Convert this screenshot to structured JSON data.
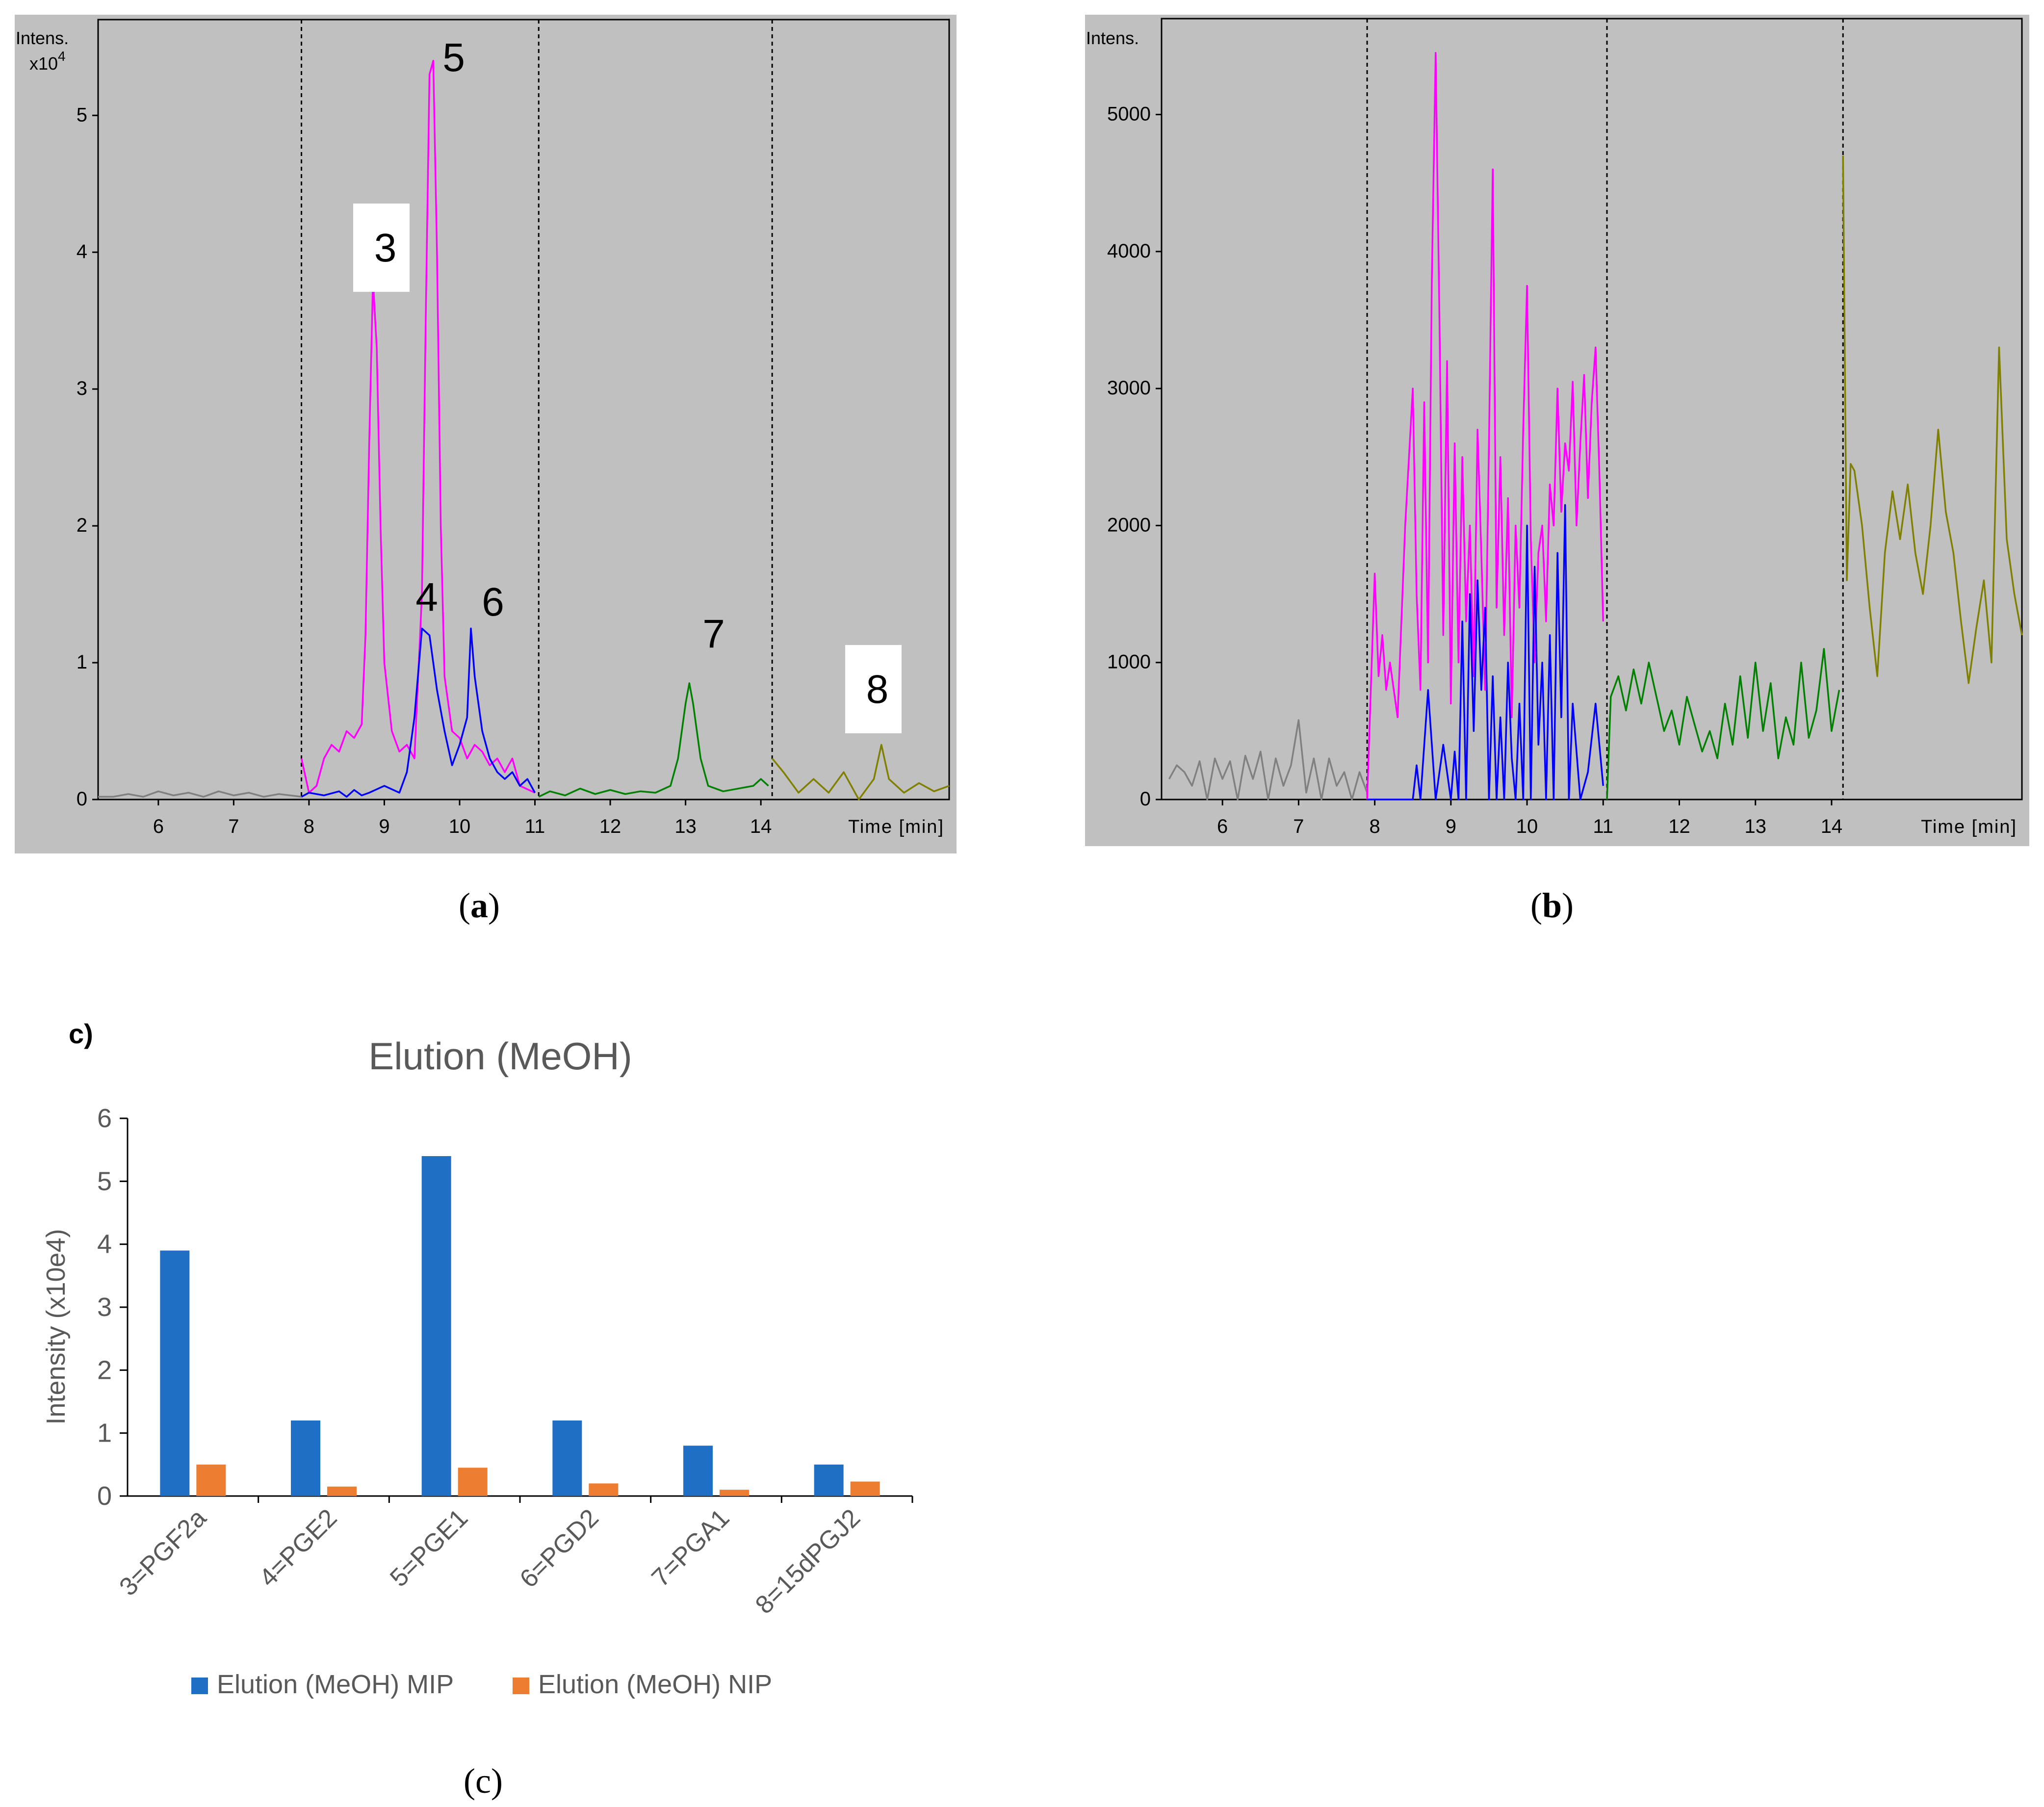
{
  "chart_data": [
    {
      "panel": "a",
      "type": "line",
      "title": "",
      "ylabel": "Intens.",
      "yunit": "x10",
      "yexp": "4",
      "xlabel": "Time [min]",
      "xlim": [
        5.2,
        16.5
      ],
      "ylim": [
        0,
        5.7
      ],
      "xticks": [
        6,
        7,
        8,
        9,
        10,
        11,
        12,
        13,
        14
      ],
      "yticks": [
        0,
        1,
        2,
        3,
        4,
        5
      ],
      "segment_boundaries": [
        7.9,
        11.05,
        14.15
      ],
      "series": [
        {
          "name": "grey",
          "color": "#808080",
          "x": [
            5.2,
            5.4,
            5.6,
            5.8,
            6.0,
            6.2,
            6.4,
            6.6,
            6.8,
            7.0,
            7.2,
            7.4,
            7.6,
            7.9
          ],
          "y": [
            0.02,
            0.02,
            0.04,
            0.02,
            0.06,
            0.03,
            0.05,
            0.02,
            0.06,
            0.03,
            0.05,
            0.02,
            0.04,
            0.02
          ]
        },
        {
          "name": "magenta",
          "color": "#ff00ff",
          "x": [
            7.9,
            8.0,
            8.1,
            8.2,
            8.3,
            8.4,
            8.5,
            8.6,
            8.7,
            8.75,
            8.8,
            8.85,
            8.9,
            8.95,
            9.0,
            9.1,
            9.2,
            9.3,
            9.4,
            9.5,
            9.55,
            9.6,
            9.65,
            9.7,
            9.75,
            9.8,
            9.9,
            10.0,
            10.1,
            10.2,
            10.3,
            10.4,
            10.5,
            10.6,
            10.7,
            10.8,
            11.0
          ],
          "y": [
            0.3,
            0.05,
            0.1,
            0.3,
            0.4,
            0.35,
            0.5,
            0.45,
            0.55,
            1.2,
            2.6,
            3.8,
            3.3,
            2.0,
            1.0,
            0.5,
            0.35,
            0.4,
            0.3,
            1.5,
            3.5,
            5.3,
            5.4,
            4.0,
            2.0,
            0.9,
            0.5,
            0.45,
            0.3,
            0.4,
            0.35,
            0.25,
            0.3,
            0.2,
            0.3,
            0.1,
            0.05
          ]
        },
        {
          "name": "blue",
          "color": "#0000ff",
          "x": [
            7.9,
            8.0,
            8.2,
            8.4,
            8.5,
            8.6,
            8.7,
            8.8,
            9.0,
            9.2,
            9.3,
            9.4,
            9.5,
            9.6,
            9.7,
            9.8,
            9.9,
            10.0,
            10.1,
            10.15,
            10.2,
            10.3,
            10.4,
            10.5,
            10.6,
            10.7,
            10.8,
            10.9,
            11.0
          ],
          "y": [
            0.02,
            0.05,
            0.03,
            0.06,
            0.02,
            0.07,
            0.03,
            0.05,
            0.1,
            0.05,
            0.2,
            0.6,
            1.25,
            1.2,
            0.8,
            0.5,
            0.25,
            0.4,
            0.6,
            1.25,
            0.9,
            0.5,
            0.3,
            0.2,
            0.15,
            0.2,
            0.1,
            0.15,
            0.05
          ]
        },
        {
          "name": "green",
          "color": "#008000",
          "x": [
            11.05,
            11.2,
            11.4,
            11.6,
            11.8,
            12.0,
            12.2,
            12.4,
            12.6,
            12.8,
            12.9,
            13.0,
            13.05,
            13.1,
            13.2,
            13.3,
            13.5,
            13.7,
            13.9,
            14.0,
            14.1
          ],
          "y": [
            0.02,
            0.06,
            0.03,
            0.08,
            0.04,
            0.07,
            0.04,
            0.06,
            0.05,
            0.1,
            0.3,
            0.7,
            0.85,
            0.7,
            0.3,
            0.1,
            0.06,
            0.08,
            0.1,
            0.15,
            0.1
          ]
        },
        {
          "name": "olive",
          "color": "#808000",
          "x": [
            14.15,
            14.3,
            14.5,
            14.7,
            14.9,
            15.1,
            15.3,
            15.5,
            15.6,
            15.7,
            15.9,
            16.1,
            16.3,
            16.5
          ],
          "y": [
            0.3,
            0.2,
            0.05,
            0.15,
            0.05,
            0.2,
            0.0,
            0.15,
            0.4,
            0.15,
            0.05,
            0.12,
            0.06,
            0.1
          ]
        }
      ],
      "peak_labels": [
        {
          "text": "3",
          "boxed": true
        },
        {
          "text": "5",
          "boxed": false
        },
        {
          "text": "4",
          "boxed": false
        },
        {
          "text": "6",
          "boxed": false
        },
        {
          "text": "7",
          "boxed": false
        },
        {
          "text": "8",
          "boxed": true
        }
      ]
    },
    {
      "panel": "b",
      "type": "line",
      "title": "",
      "ylabel": "Intens.",
      "xlabel": "Time [min]",
      "xlim": [
        5.2,
        16.5
      ],
      "ylim": [
        0,
        5700
      ],
      "xticks": [
        6,
        7,
        8,
        9,
        10,
        11,
        12,
        13,
        14
      ],
      "yticks": [
        0,
        1000,
        2000,
        3000,
        4000,
        5000
      ],
      "segment_boundaries": [
        7.9,
        11.05,
        14.15
      ],
      "series": [
        {
          "name": "grey",
          "color": "#808080",
          "x": [
            5.3,
            5.4,
            5.5,
            5.6,
            5.7,
            5.8,
            5.9,
            6.0,
            6.1,
            6.2,
            6.3,
            6.4,
            6.5,
            6.6,
            6.7,
            6.8,
            6.9,
            7.0,
            7.1,
            7.2,
            7.3,
            7.4,
            7.5,
            7.6,
            7.7,
            7.8,
            7.9
          ],
          "y": [
            150,
            250,
            200,
            100,
            280,
            0,
            300,
            150,
            280,
            0,
            320,
            150,
            350,
            0,
            300,
            100,
            250,
            580,
            50,
            300,
            0,
            300,
            100,
            200,
            0,
            200,
            50
          ]
        },
        {
          "name": "magenta",
          "color": "#ff00ff",
          "x": [
            7.9,
            8.0,
            8.05,
            8.1,
            8.15,
            8.2,
            8.3,
            8.4,
            8.5,
            8.55,
            8.6,
            8.65,
            8.7,
            8.75,
            8.8,
            8.85,
            8.9,
            8.95,
            9.0,
            9.05,
            9.1,
            9.15,
            9.2,
            9.25,
            9.3,
            9.35,
            9.4,
            9.45,
            9.5,
            9.55,
            9.6,
            9.65,
            9.7,
            9.75,
            9.8,
            9.85,
            9.9,
            9.95,
            10.0,
            10.05,
            10.1,
            10.15,
            10.2,
            10.25,
            10.3,
            10.35,
            10.4,
            10.45,
            10.5,
            10.55,
            10.6,
            10.65,
            10.7,
            10.75,
            10.8,
            10.85,
            10.9,
            10.95,
            11.0
          ],
          "y": [
            0,
            1650,
            900,
            1200,
            800,
            1000,
            600,
            2000,
            3000,
            1500,
            800,
            2900,
            1000,
            3800,
            5450,
            3500,
            1200,
            3200,
            700,
            2600,
            1000,
            2500,
            1300,
            2000,
            900,
            2700,
            1800,
            800,
            2600,
            4600,
            1400,
            2500,
            1200,
            2200,
            600,
            2000,
            1400,
            2700,
            3750,
            1900,
            1000,
            1800,
            2000,
            1300,
            2300,
            2000,
            3000,
            2100,
            2600,
            2400,
            3050,
            2000,
            2600,
            3100,
            2200,
            2900,
            3300,
            2400,
            1300
          ]
        },
        {
          "name": "blue",
          "color": "#0000ff",
          "x": [
            7.9,
            8.5,
            8.55,
            8.6,
            8.7,
            8.8,
            8.9,
            9.0,
            9.05,
            9.1,
            9.15,
            9.2,
            9.25,
            9.3,
            9.35,
            9.4,
            9.45,
            9.5,
            9.55,
            9.6,
            9.65,
            9.7,
            9.75,
            9.8,
            9.85,
            9.9,
            9.95,
            10.0,
            10.05,
            10.1,
            10.15,
            10.2,
            10.25,
            10.3,
            10.35,
            10.4,
            10.45,
            10.5,
            10.55,
            10.6,
            10.7,
            10.8,
            10.9,
            11.0
          ],
          "y": [
            0,
            0,
            250,
            0,
            800,
            0,
            400,
            0,
            350,
            0,
            1300,
            0,
            1500,
            500,
            1600,
            800,
            1400,
            0,
            900,
            0,
            600,
            0,
            1000,
            300,
            0,
            700,
            0,
            2000,
            0,
            1700,
            400,
            1000,
            0,
            1200,
            0,
            1800,
            600,
            2150,
            0,
            700,
            0,
            200,
            700,
            100
          ]
        },
        {
          "name": "green",
          "color": "#008000",
          "x": [
            11.05,
            11.1,
            11.2,
            11.3,
            11.4,
            11.5,
            11.6,
            11.7,
            11.8,
            11.9,
            12.0,
            12.1,
            12.2,
            12.3,
            12.4,
            12.5,
            12.6,
            12.7,
            12.8,
            12.9,
            13.0,
            13.1,
            13.2,
            13.3,
            13.4,
            13.5,
            13.6,
            13.7,
            13.8,
            13.9,
            14.0,
            14.1
          ],
          "y": [
            0,
            750,
            900,
            650,
            950,
            700,
            1000,
            750,
            500,
            650,
            400,
            750,
            550,
            350,
            500,
            300,
            700,
            400,
            900,
            450,
            1000,
            500,
            850,
            300,
            600,
            400,
            1000,
            450,
            650,
            1100,
            500,
            800
          ]
        },
        {
          "name": "olive",
          "color": "#808000",
          "x": [
            14.15,
            14.2,
            14.25,
            14.3,
            14.4,
            14.5,
            14.6,
            14.7,
            14.8,
            14.9,
            15.0,
            15.1,
            15.2,
            15.3,
            15.4,
            15.5,
            15.6,
            15.7,
            15.8,
            15.9,
            16.0,
            16.1,
            16.2,
            16.3,
            16.4,
            16.5
          ],
          "y": [
            4700,
            1600,
            2450,
            2400,
            2000,
            1400,
            900,
            1800,
            2250,
            1900,
            2300,
            1800,
            1500,
            2000,
            2700,
            2100,
            1800,
            1300,
            850,
            1250,
            1600,
            1000,
            3300,
            1900,
            1500,
            1200
          ]
        }
      ]
    },
    {
      "panel": "c",
      "type": "bar",
      "title": "Elution (MeOH)",
      "xlabel": "",
      "ylabel": "Intensity (x10e4)",
      "ylim": [
        0,
        6
      ],
      "yticks": [
        0,
        1,
        2,
        3,
        4,
        5,
        6
      ],
      "categories": [
        "3=PGF2a",
        "4=PGE2",
        "5=PGE1",
        "6=PGD2",
        "7=PGA1",
        "8=15dPGJ2"
      ],
      "series": [
        {
          "name": "Elution (MeOH) MIP",
          "color": "#1f6fc5",
          "values": [
            3.9,
            1.2,
            5.4,
            1.2,
            0.8,
            0.5
          ]
        },
        {
          "name": "Elution (MeOH) NIP",
          "color": "#ed7d31",
          "values": [
            0.5,
            0.15,
            0.45,
            0.2,
            0.1,
            0.23
          ]
        }
      ],
      "legend": "bottom"
    }
  ],
  "labels": {
    "panel_a": "a",
    "panel_b": "b",
    "panel_c": "c",
    "c_tag": "c)"
  }
}
